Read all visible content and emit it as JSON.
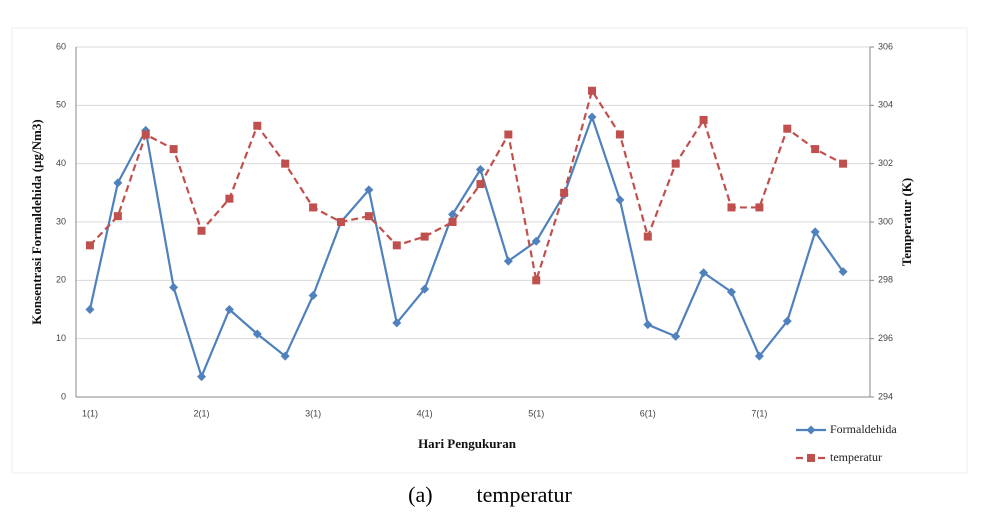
{
  "chart_data": {
    "type": "line",
    "y_label": "Konsentrasi Formaldehida  (µg/Nm3)",
    "y2_label": "Temperatur (K)",
    "x_label": "Hari Pengukuran",
    "caption": "(a)        temperatur",
    "categories": [
      "1(1)",
      null,
      null,
      null,
      "2(1)",
      null,
      null,
      null,
      "3(1)",
      null,
      null,
      null,
      "4(1)",
      null,
      null,
      null,
      "5(1)",
      null,
      null,
      null,
      "6(1)",
      null,
      null,
      null,
      "7(1)",
      null,
      null,
      null
    ],
    "series": [
      {
        "name": "Formaldehida",
        "color": "#4f81bd",
        "dash": false,
        "marker": "diamond",
        "values": [
          15,
          36.7,
          45.7,
          18.8,
          3.5,
          15,
          10.8,
          7,
          17.4,
          30,
          35.5,
          12.7,
          18.5,
          31.3,
          39,
          23.3,
          26.7,
          34.7,
          48,
          33.8,
          12.4,
          10.4,
          21.3,
          18,
          7,
          13,
          28.3,
          21.5
        ]
      },
      {
        "name": "temperatur",
        "color": "#c0504d",
        "dash": true,
        "marker": "square",
        "axis": "y2",
        "values": [
          299.2,
          300.2,
          303,
          302.5,
          299.7,
          300.8,
          303.3,
          302,
          300.5,
          300,
          300.2,
          299.2,
          299.5,
          300,
          301.3,
          303,
          298,
          301,
          304.5,
          303,
          299.5,
          302,
          303.5,
          300.5,
          300.5,
          303.2,
          302.5,
          302
        ]
      }
    ],
    "ylim": [
      0,
      60
    ],
    "yticks": [
      0,
      10,
      20,
      30,
      40,
      50,
      60
    ],
    "y2lim": [
      294,
      306
    ],
    "y2ticks": [
      294,
      296,
      298,
      300,
      302,
      304,
      306
    ],
    "grid": true,
    "legend": "lower right"
  }
}
